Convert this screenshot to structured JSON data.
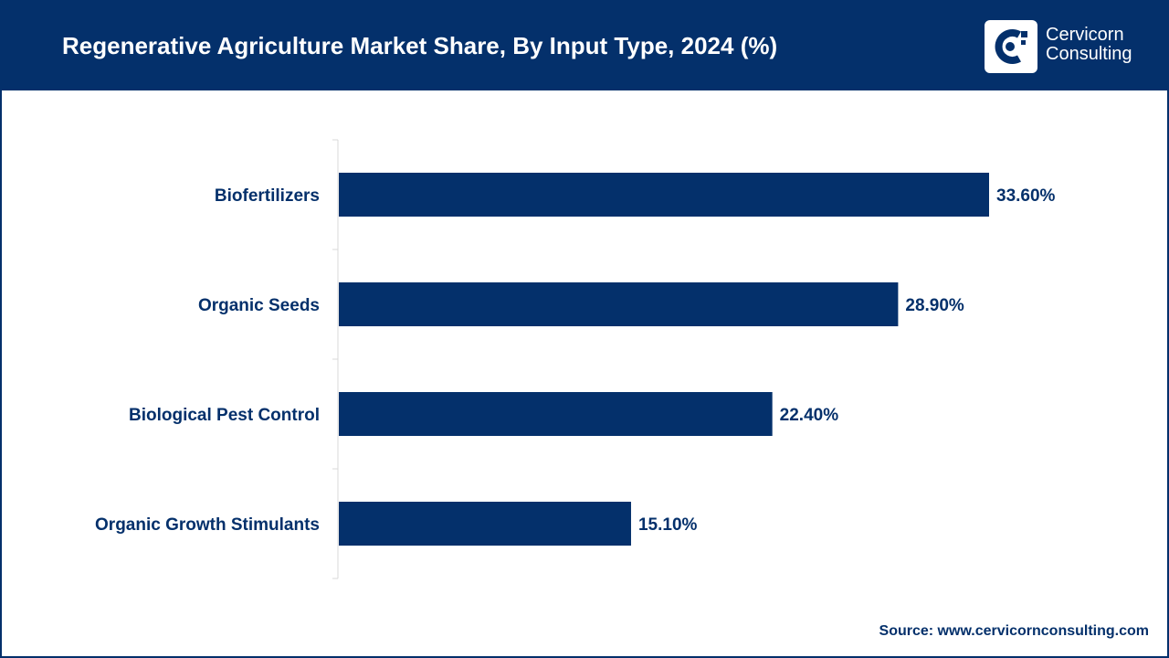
{
  "header": {
    "title": "Regenerative Agriculture Market Share, By Input Type, 2024 (%)",
    "logo_line1": "Cervicorn",
    "logo_line2": "Consulting"
  },
  "footer": {
    "source": "Source: www.cervicornconsulting.com"
  },
  "colors": {
    "brand": "#04306b",
    "bar": "#04306b",
    "label": "#04306b"
  },
  "chart_data": {
    "type": "bar",
    "orientation": "horizontal",
    "title": "Regenerative Agriculture Market Share, By Input Type, 2024 (%)",
    "categories": [
      "Biofertilizers",
      "Organic Seeds",
      "Biological Pest Control",
      "Organic Growth Stimulants"
    ],
    "values": [
      33.6,
      28.9,
      22.4,
      15.1
    ],
    "value_labels": [
      "33.60%",
      "28.90%",
      "22.40%",
      "15.10%"
    ],
    "xlim": [
      0,
      40
    ],
    "grid": false,
    "legend": "none"
  }
}
